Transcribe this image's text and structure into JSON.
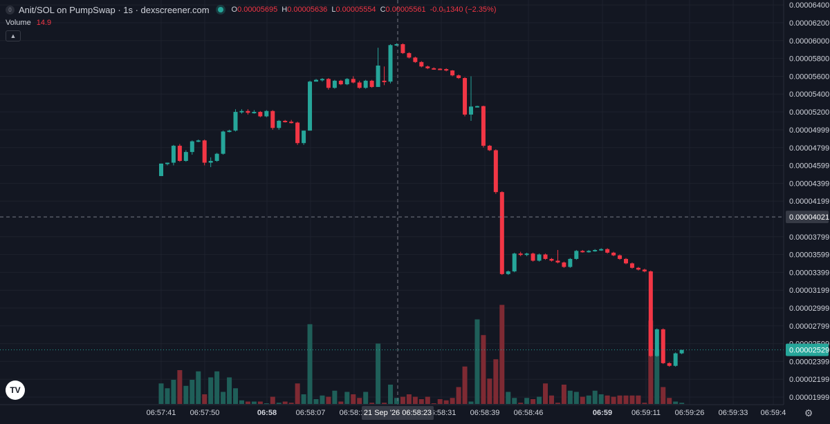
{
  "header": {
    "title": "Anit/SOL on PumpSwap · 1s · dexscreener.com",
    "symbol_icon": "0",
    "ohlc": {
      "o_label": "O",
      "o": "0.00005695",
      "h_label": "H",
      "h": "0.00005636",
      "l_label": "L",
      "l": "0.00005554",
      "c_label": "C",
      "c": "0.00005561",
      "change": "-0.0₅1340 (−2.35%)"
    },
    "volume_label": "Volume",
    "volume_value": "14.9"
  },
  "colors": {
    "background": "#131722",
    "up": "#26a69a",
    "down": "#f23645",
    "vol_up": "#1f5f59",
    "vol_down": "#7e2a33",
    "grid": "#1e222d",
    "axis_text": "#d1d4dc"
  },
  "chart_data": {
    "type": "candlestick",
    "price_axis": {
      "ticks": [
        "0.00006400",
        "0.00006200",
        "0.00006000",
        "0.00005800",
        "0.00005600",
        "0.00005400",
        "0.00005200",
        "0.00004999",
        "0.00004799",
        "0.00004599",
        "0.00004399",
        "0.00004199",
        "0.00003799",
        "0.00003599",
        "0.00003399",
        "0.00003199",
        "0.00002999",
        "0.00002799",
        "0.00002599",
        "0.00002399",
        "0.00002199",
        "0.00001999"
      ],
      "range": [
        1.914e-05,
        6.456e-05
      ]
    },
    "time_axis": {
      "ticks": [
        {
          "label": "06:57:41",
          "bold": false
        },
        {
          "label": "06:57:50",
          "bold": false
        },
        {
          "label": "06:58",
          "bold": true
        },
        {
          "label": "06:58:07",
          "bold": false
        },
        {
          "label": "06:58:15",
          "bold": false
        },
        {
          "label": "06:58:31",
          "bold": false
        },
        {
          "label": "06:58:39",
          "bold": false
        },
        {
          "label": "06:58:46",
          "bold": false
        },
        {
          "label": "06:59",
          "bold": true
        },
        {
          "label": "06:59:11",
          "bold": false
        },
        {
          "label": "06:59:26",
          "bold": false
        },
        {
          "label": "06:59:33",
          "bold": false
        },
        {
          "label": "06:59:4",
          "bold": false
        }
      ]
    },
    "crosshair": {
      "time_label": "21 Sep '26   06:58:23",
      "price_label": "0.00004021",
      "price": 4.021e-05
    },
    "last_price": {
      "label": "0.00002529",
      "price": 2.529e-05
    },
    "candles": [
      [
        4.48e-05,
        4.62e-05,
        4.48e-05,
        4.62e-05
      ],
      [
        4.62e-05,
        4.63e-05,
        4.6e-05,
        4.63e-05
      ],
      [
        4.63e-05,
        4.83e-05,
        4.6e-05,
        4.82e-05
      ],
      [
        4.82e-05,
        4.84e-05,
        4.64e-05,
        4.65e-05
      ],
      [
        4.65e-05,
        4.77e-05,
        4.64e-05,
        4.75e-05
      ],
      [
        4.75e-05,
        4.88e-05,
        4.72e-05,
        4.87e-05
      ],
      [
        4.87e-05,
        4.89e-05,
        4.86e-05,
        4.88e-05
      ],
      [
        4.88e-05,
        4.89e-05,
        4.6e-05,
        4.63e-05
      ],
      [
        4.63e-05,
        4.69e-05,
        4.58e-05,
        4.65e-05
      ],
      [
        4.65e-05,
        4.74e-05,
        4.64e-05,
        4.73e-05
      ],
      [
        4.73e-05,
        4.99e-05,
        4.72e-05,
        4.98e-05
      ],
      [
        4.98e-05,
        5e-05,
        4.97e-05,
        4.99e-05
      ],
      [
        4.99e-05,
        5.23e-05,
        4.98e-05,
        5.2e-05
      ],
      [
        5.2e-05,
        5.23e-05,
        5.18e-05,
        5.21e-05
      ],
      [
        5.21e-05,
        5.23e-05,
        5.17e-05,
        5.19e-05
      ],
      [
        5.19e-05,
        5.22e-05,
        5.18e-05,
        5.2e-05
      ],
      [
        5.2e-05,
        5.21e-05,
        5.14e-05,
        5.15e-05
      ],
      [
        5.15e-05,
        5.22e-05,
        5.14e-05,
        5.21e-05
      ],
      [
        5.21e-05,
        5.22e-05,
        5e-05,
        5.02e-05
      ],
      [
        5.02e-05,
        5.11e-05,
        5e-05,
        5.1e-05
      ],
      [
        5.1e-05,
        5.11e-05,
        5.08e-05,
        5.09e-05
      ],
      [
        5.09e-05,
        5.11e-05,
        5.07e-05,
        5.08e-05
      ],
      [
        5.08e-05,
        5.09e-05,
        4.83e-05,
        4.85e-05
      ],
      [
        4.85e-05,
        4.99e-05,
        4.83e-05,
        4.99e-05
      ],
      [
        4.99e-05,
        5.55e-05,
        4.99e-05,
        5.54e-05
      ],
      [
        5.54e-05,
        5.57e-05,
        5.55e-05,
        5.56e-05
      ],
      [
        5.56e-05,
        5.58e-05,
        5.54e-05,
        5.57e-05
      ],
      [
        5.57e-05,
        5.58e-05,
        5.45e-05,
        5.47e-05
      ],
      [
        5.47e-05,
        5.56e-05,
        5.46e-05,
        5.55e-05
      ],
      [
        5.55e-05,
        5.56e-05,
        5.5e-05,
        5.51e-05
      ],
      [
        5.51e-05,
        5.58e-05,
        5.5e-05,
        5.57e-05
      ],
      [
        5.57e-05,
        5.6e-05,
        5.52e-05,
        5.53e-05
      ],
      [
        5.53e-05,
        5.55e-05,
        5.46e-05,
        5.47e-05
      ],
      [
        5.47e-05,
        5.56e-05,
        5.46e-05,
        5.55e-05
      ],
      [
        5.55e-05,
        5.56e-05,
        5.47e-05,
        5.48e-05
      ],
      [
        5.48e-05,
        5.92e-05,
        5.48e-05,
        5.72e-05
      ],
      [
        5.55e-05,
        5.71e-05,
        5.5e-05,
        5.54e-05
      ],
      [
        5.54e-05,
        5.96e-05,
        5.52e-05,
        5.95e-05
      ],
      [
        5.95e-05,
        5.97e-05,
        5.94e-05,
        5.96e-05
      ],
      [
        5.96e-05,
        5.97e-05,
        5.85e-05,
        5.86e-05
      ],
      [
        5.86e-05,
        5.87e-05,
        5.8e-05,
        5.81e-05
      ],
      [
        5.81e-05,
        5.82e-05,
        5.75e-05,
        5.76e-05
      ],
      [
        5.76e-05,
        5.77e-05,
        5.7e-05,
        5.71e-05
      ],
      [
        5.71e-05,
        5.72e-05,
        5.68e-05,
        5.69e-05
      ],
      [
        5.69e-05,
        5.7e-05,
        5.675e-05,
        5.685e-05
      ],
      [
        5.685e-05,
        5.69e-05,
        5.67e-05,
        5.68e-05
      ],
      [
        5.68e-05,
        5.69e-05,
        5.655e-05,
        5.665e-05
      ],
      [
        5.665e-05,
        5.67e-05,
        5.6e-05,
        5.61e-05
      ],
      [
        5.61e-05,
        5.62e-05,
        5.57e-05,
        5.58e-05
      ],
      [
        5.58e-05,
        5.59e-05,
        5.15e-05,
        5.17e-05
      ],
      [
        5.17e-05,
        5.6e-05,
        5.1e-05,
        5.26e-05
      ],
      [
        5.26e-05,
        5.27e-05,
        5.25e-05,
        5.265e-05
      ],
      [
        5.265e-05,
        5.27e-05,
        4.8e-05,
        4.82e-05
      ],
      [
        4.82e-05,
        4.83e-05,
        4.76e-05,
        4.77e-05
      ],
      [
        4.77e-05,
        4.78e-05,
        4.28e-05,
        4.3e-05
      ],
      [
        4.3e-05,
        4.31e-05,
        3.37e-05,
        3.38e-05
      ],
      [
        3.38e-05,
        3.42e-05,
        3.37e-05,
        3.41e-05
      ],
      [
        3.41e-05,
        3.62e-05,
        3.4e-05,
        3.61e-05
      ],
      [
        3.61e-05,
        3.63e-05,
        3.58e-05,
        3.6e-05
      ],
      [
        3.6e-05,
        3.62e-05,
        3.58e-05,
        3.61e-05
      ],
      [
        3.61e-05,
        3.62e-05,
        3.52e-05,
        3.53e-05
      ],
      [
        3.53e-05,
        3.61e-05,
        3.52e-05,
        3.6e-05
      ],
      [
        3.6e-05,
        3.61e-05,
        3.54e-05,
        3.55e-05
      ],
      [
        3.55e-05,
        3.56e-05,
        3.52e-05,
        3.53e-05
      ],
      [
        3.53e-05,
        3.65e-05,
        3.5e-05,
        3.51e-05
      ],
      [
        3.51e-05,
        3.52e-05,
        3.45e-05,
        3.46e-05
      ],
      [
        3.46e-05,
        3.56e-05,
        3.45e-05,
        3.55e-05
      ],
      [
        3.55e-05,
        3.65e-05,
        3.54e-05,
        3.64e-05
      ],
      [
        3.64e-05,
        3.65e-05,
        3.62e-05,
        3.63e-05
      ],
      [
        3.63e-05,
        3.65e-05,
        3.62e-05,
        3.64e-05
      ],
      [
        3.64e-05,
        3.66e-05,
        3.63e-05,
        3.65e-05
      ],
      [
        3.65e-05,
        3.67e-05,
        3.64e-05,
        3.66e-05
      ],
      [
        3.66e-05,
        3.67e-05,
        3.61e-05,
        3.62e-05
      ],
      [
        3.62e-05,
        3.63e-05,
        3.58e-05,
        3.59e-05
      ],
      [
        3.59e-05,
        3.6e-05,
        3.54e-05,
        3.55e-05
      ],
      [
        3.55e-05,
        3.56e-05,
        3.49e-05,
        3.5e-05
      ],
      [
        3.5e-05,
        3.51e-05,
        3.44e-05,
        3.45e-05
      ],
      [
        3.45e-05,
        3.46e-05,
        3.42e-05,
        3.43e-05
      ],
      [
        3.43e-05,
        3.44e-05,
        3.4e-05,
        3.41e-05
      ],
      [
        3.41e-05,
        3.42e-05,
        2.45e-05,
        2.46e-05
      ],
      [
        2.46e-05,
        2.77e-05,
        2.45e-05,
        2.76e-05
      ],
      [
        2.76e-05,
        2.77e-05,
        2.37e-05,
        2.38e-05
      ],
      [
        2.38e-05,
        2.39e-05,
        2.34e-05,
        2.35e-05
      ],
      [
        2.35e-05,
        2.5e-05,
        2.34e-05,
        2.49e-05
      ],
      [
        2.49e-05,
        2.53e-05,
        2.48e-05,
        2.529e-05
      ]
    ],
    "volumes": [
      17,
      13,
      20,
      28,
      15,
      20,
      27,
      8,
      22,
      27,
      10,
      22,
      13,
      3,
      2,
      2,
      2,
      0,
      6,
      1,
      2,
      1,
      17,
      8,
      66,
      4,
      7,
      6,
      11,
      2,
      10,
      8,
      5,
      10,
      1,
      50,
      1,
      16,
      5,
      6,
      8,
      6,
      4,
      6,
      0,
      4,
      3,
      5,
      14,
      31,
      2,
      70,
      57,
      21,
      37,
      82,
      10,
      5,
      1,
      5,
      4,
      6,
      17,
      7,
      1,
      16,
      11,
      10,
      6,
      7,
      11,
      8,
      7,
      6,
      7,
      7,
      7,
      7,
      1,
      69,
      45,
      14,
      5,
      2,
      1
    ]
  }
}
